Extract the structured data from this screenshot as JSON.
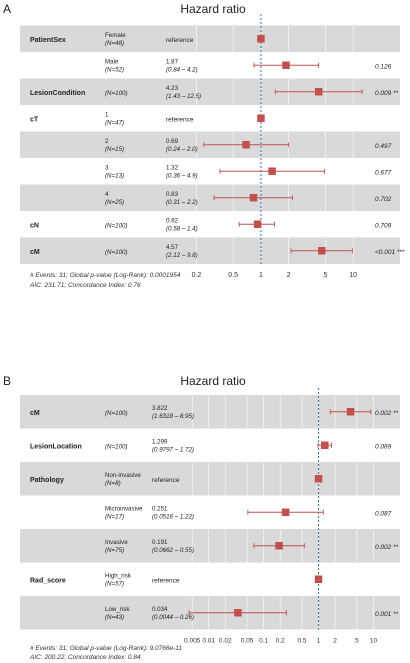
{
  "panels": [
    {
      "letter": "A",
      "title": "Hazard ratio",
      "footer": [
        "# Events: 31; Global p-value (Log-Rank): 0.0001954",
        "AIC: 231.71; Concordance Index: 0.76"
      ]
    },
    {
      "letter": "B",
      "title": "Hazard ratio",
      "footer": [
        "# Events: 31; Global p-value (Log-Rank): 9.0766e-11",
        "AIC: 200.22; Concordance Index: 0.84"
      ]
    }
  ],
  "colors": {
    "shade": "#d9d9d9",
    "marker": "#c0504d",
    "reference_line": "#3b6ea5"
  },
  "chart_data": [
    {
      "type": "forest",
      "title": "Hazard ratio",
      "scale": "log",
      "xlim": [
        0.12,
        16
      ],
      "ticks": [
        "0.2",
        "0.5",
        "1",
        "2",
        "5",
        "10"
      ],
      "tick_values": [
        0.2,
        0.5,
        1,
        2,
        5,
        10
      ],
      "reference_value": 1,
      "rows": [
        {
          "variable": "PatientSex",
          "level": "Female",
          "n": "(N=48)",
          "est": "reference",
          "hr": 1,
          "lo": null,
          "hi": null,
          "p": "",
          "sig": "",
          "ref": true,
          "shade": true
        },
        {
          "variable": "",
          "level": "Male",
          "n": "(N=52)",
          "est": "1.87",
          "ci": "(0.84 – 4.2)",
          "hr": 1.87,
          "lo": 0.84,
          "hi": 4.2,
          "p": "0.126",
          "sig": "",
          "ref": false,
          "shade": false
        },
        {
          "variable": "LesionCondition",
          "level": "",
          "n": "(N=100)",
          "est": "4.23",
          "ci": "(1.43 – 12.5)",
          "hr": 4.23,
          "lo": 1.43,
          "hi": 12.5,
          "p": "0.009",
          "sig": "**",
          "ref": false,
          "shade": true
        },
        {
          "variable": "cT",
          "level": "1",
          "n": "(N=47)",
          "est": "reference",
          "hr": 1,
          "lo": null,
          "hi": null,
          "p": "",
          "sig": "",
          "ref": true,
          "shade": false
        },
        {
          "variable": "",
          "level": "2",
          "n": "(N=15)",
          "est": "0.69",
          "ci": "(0.24 – 2.0)",
          "hr": 0.69,
          "lo": 0.24,
          "hi": 2.0,
          "p": "0.497",
          "sig": "",
          "ref": false,
          "shade": true
        },
        {
          "variable": "",
          "level": "3",
          "n": "(N=13)",
          "est": "1.32",
          "ci": "(0.36 – 4.9)",
          "hr": 1.32,
          "lo": 0.36,
          "hi": 4.9,
          "p": "0.677",
          "sig": "",
          "ref": false,
          "shade": false
        },
        {
          "variable": "",
          "level": "4",
          "n": "(N=25)",
          "est": "0.83",
          "ci": "(0.31 – 2.2)",
          "hr": 0.83,
          "lo": 0.31,
          "hi": 2.2,
          "p": "0.702",
          "sig": "",
          "ref": false,
          "shade": true
        },
        {
          "variable": "cN",
          "level": "",
          "n": "(N=100)",
          "est": "0.92",
          "ci": "(0.58 – 1.4)",
          "hr": 0.92,
          "lo": 0.58,
          "hi": 1.4,
          "p": "0.709",
          "sig": "",
          "ref": false,
          "shade": false
        },
        {
          "variable": "cM",
          "level": "",
          "n": "(N=100)",
          "est": "4.57",
          "ci": "(2.12 – 9.8)",
          "hr": 4.57,
          "lo": 2.12,
          "hi": 9.8,
          "p": "<0.001",
          "sig": "***",
          "ref": false,
          "shade": true
        }
      ]
    },
    {
      "type": "forest",
      "title": "Hazard ratio",
      "scale": "log",
      "xlim": [
        0.003,
        20
      ],
      "ticks": [
        "0.005",
        "0.01",
        "0.02",
        "0.05",
        "0.1",
        "0.2",
        "0.5",
        "1",
        "2",
        "5",
        "10"
      ],
      "tick_values": [
        0.005,
        0.01,
        0.02,
        0.05,
        0.1,
        0.2,
        0.5,
        1,
        2,
        5,
        10
      ],
      "reference_value": 1,
      "rows": [
        {
          "variable": "cM",
          "level": "",
          "n": "(N=100)",
          "est": "3.822",
          "ci": "(1.6318 – 8.95)",
          "hr": 3.822,
          "lo": 1.6318,
          "hi": 8.95,
          "p": "0.002",
          "sig": "**",
          "ref": false,
          "shade": true
        },
        {
          "variable": "LesionLocation",
          "level": "",
          "n": "(N=100)",
          "est": "1.299",
          "ci": "(0.9797 – 1.72)",
          "hr": 1.299,
          "lo": 0.9797,
          "hi": 1.72,
          "p": "0.069",
          "sig": "",
          "ref": false,
          "shade": false
        },
        {
          "variable": "Pathology",
          "level": "Non-invasive",
          "n": "(N=8)",
          "est": "reference",
          "hr": 1,
          "lo": null,
          "hi": null,
          "p": "",
          "sig": "",
          "ref": true,
          "shade": true
        },
        {
          "variable": "",
          "level": "Microinvasive",
          "n": "(N=17)",
          "est": "0.251",
          "ci": "(0.0516 – 1.22)",
          "hr": 0.251,
          "lo": 0.0516,
          "hi": 1.22,
          "p": "0.087",
          "sig": "",
          "ref": false,
          "shade": false
        },
        {
          "variable": "",
          "level": "Invasive",
          "n": "(N=75)",
          "est": "0.191",
          "ci": "(0.0662 – 0.55)",
          "hr": 0.191,
          "lo": 0.0662,
          "hi": 0.55,
          "p": "0.002",
          "sig": "**",
          "ref": false,
          "shade": true
        },
        {
          "variable": "Rad_score",
          "level": "High_risk",
          "n": "(N=57)",
          "est": "reference",
          "hr": 1,
          "lo": null,
          "hi": null,
          "p": "",
          "sig": "",
          "ref": true,
          "shade": false
        },
        {
          "variable": "",
          "level": "Low_risk",
          "n": "(N=43)",
          "est": "0.034",
          "ci": "(0.0044 – 0.26)",
          "hr": 0.034,
          "lo": 0.0044,
          "hi": 0.26,
          "p": "0.001",
          "sig": "**",
          "ref": false,
          "shade": true
        }
      ]
    }
  ]
}
